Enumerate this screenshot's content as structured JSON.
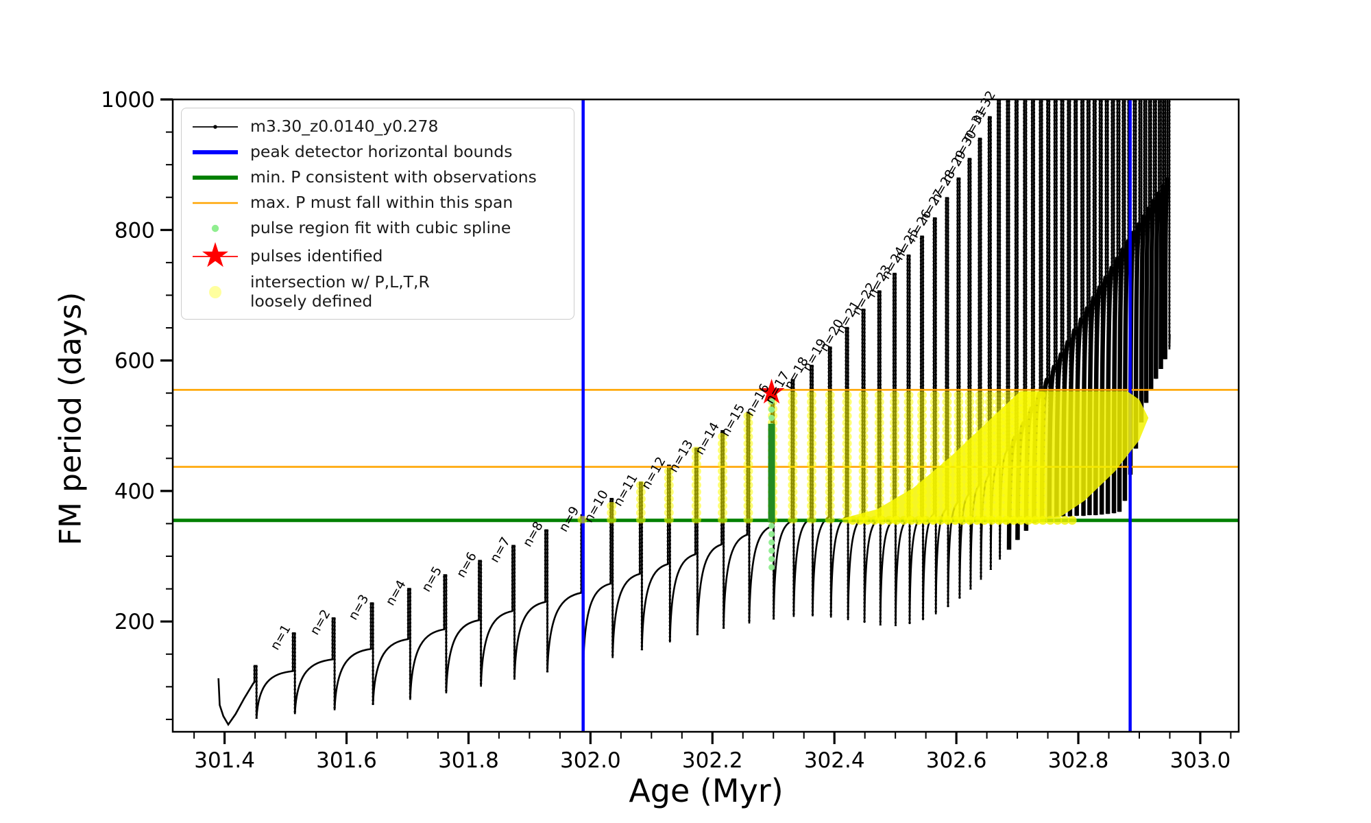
{
  "legend": {
    "entries": [
      {
        "label": "m3.30_z0.0140_y0.278",
        "marker": "black-line-dot"
      },
      {
        "label": "peak detector horizontal bounds",
        "marker": "blue-line"
      },
      {
        "label": "min. P consistent with observations",
        "marker": "green-line"
      },
      {
        "label": "max. P must fall within this span",
        "marker": "orange-line"
      },
      {
        "label": "pulse region fit with cubic spline",
        "marker": "lightgreen-dot"
      },
      {
        "label": "pulses identified",
        "marker": "red-star"
      },
      {
        "label": "intersection w/ P,L,T,R\nloosely defined",
        "marker": "yellow-dot"
      }
    ]
  },
  "chart_data": {
    "type": "line",
    "title": "",
    "xlabel": "Age (Myr)",
    "ylabel": "FM period (days)",
    "xlim": [
      301.315,
      303.063
    ],
    "ylim": [
      31,
      1000
    ],
    "xticks": [
      301.4,
      301.6,
      301.8,
      302.0,
      302.2,
      302.4,
      302.6,
      302.8,
      303.0
    ],
    "xtick_minor_step": 0.05,
    "yticks": [
      200,
      400,
      600,
      800,
      1000
    ],
    "ytick_minor_step": 50,
    "grid": false,
    "legend_position": "upper-left",
    "series_name": "m3.30_z0.0140_y0.278",
    "colors": {
      "series": "#000000",
      "peak_detector_bounds": "#0000ff",
      "min_P": "#008000",
      "max_P_span": "#ffa500",
      "spline_dots": "#90ee90",
      "spline_dense": "#228b22",
      "pulse_star": "#ff0000",
      "intersection": "#ffff00"
    },
    "vertical_lines": {
      "label": "peak detector horizontal bounds",
      "ages": [
        301.988,
        302.885
      ]
    },
    "horizontal_lines": {
      "min_P_consistent": 355,
      "max_P_span": [
        437,
        555
      ]
    },
    "star": {
      "age": 302.297,
      "period": 551,
      "label": "pulses identified"
    },
    "spline_column": {
      "age": 302.297,
      "light_range": [
        283,
        545
      ],
      "dense_range": [
        352,
        503
      ]
    },
    "prelude_points": [
      [
        301.39,
        113
      ],
      [
        301.392,
        72
      ],
      [
        301.398,
        55
      ],
      [
        301.406,
        42
      ],
      [
        301.418,
        58
      ],
      [
        301.432,
        82
      ],
      [
        301.447,
        105
      ]
    ],
    "pulses_columns": [
      "n",
      "age",
      "shoulder_P",
      "peak_P",
      "trough_P"
    ],
    "pulses": [
      [
        0,
        301.449,
        107,
        132,
        51
      ],
      [
        1,
        301.512,
        124,
        182,
        58
      ],
      [
        2,
        301.577,
        142,
        205,
        64
      ],
      [
        3,
        301.64,
        158,
        228,
        72
      ],
      [
        4,
        301.701,
        173,
        250,
        80
      ],
      [
        5,
        301.76,
        188,
        271,
        90
      ],
      [
        6,
        301.817,
        202,
        293,
        100
      ],
      [
        7,
        301.872,
        216,
        316,
        111
      ],
      [
        8,
        301.926,
        230,
        340,
        122
      ],
      [
        9,
        301.985,
        244,
        363,
        133
      ],
      [
        10,
        302.033,
        258,
        388,
        144
      ],
      [
        11,
        302.081,
        273,
        413,
        156
      ],
      [
        12,
        302.127,
        288,
        439,
        168
      ],
      [
        13,
        302.172,
        303,
        465,
        179
      ],
      [
        14,
        302.215,
        318,
        492,
        189
      ],
      [
        15,
        302.257,
        333,
        520,
        197
      ],
      [
        16,
        302.297,
        346,
        551,
        203
      ],
      [
        17,
        302.33,
        354,
        570,
        207
      ],
      [
        18,
        302.361,
        358,
        592,
        208
      ],
      [
        19,
        302.391,
        360,
        620,
        206
      ],
      [
        20,
        302.419,
        360,
        650,
        202
      ],
      [
        21,
        302.446,
        359,
        678,
        198
      ],
      [
        22,
        302.472,
        357,
        706,
        194
      ],
      [
        23,
        302.497,
        356,
        733,
        193
      ],
      [
        24,
        302.52,
        357,
        761,
        196
      ],
      [
        25,
        302.542,
        360,
        790,
        202
      ],
      [
        26,
        302.563,
        365,
        818,
        211
      ],
      [
        27,
        302.583,
        372,
        849,
        222
      ],
      [
        28,
        302.602,
        382,
        879,
        235
      ],
      [
        29,
        302.62,
        394,
        909,
        249
      ],
      [
        30,
        302.637,
        408,
        940,
        264
      ],
      [
        31,
        302.653,
        424,
        973,
        279
      ],
      [
        32,
        302.668,
        442,
        1000,
        295
      ],
      [
        33,
        302.683,
        462,
        1015,
        310
      ],
      [
        34,
        302.697,
        483,
        1015,
        325
      ],
      [
        35,
        302.711,
        505,
        1015,
        339
      ],
      [
        36,
        302.724,
        528,
        1015,
        351
      ],
      [
        37,
        302.737,
        551,
        1015,
        357
      ],
      [
        38,
        302.749,
        572,
        1015,
        359
      ],
      [
        39,
        302.761,
        592,
        1015,
        360
      ],
      [
        40,
        302.772,
        611,
        1015,
        361
      ],
      [
        41,
        302.783,
        630,
        1015,
        361
      ],
      [
        42,
        302.794,
        648,
        1015,
        362
      ],
      [
        43,
        302.805,
        665,
        1015,
        362
      ],
      [
        44,
        302.815,
        682,
        1015,
        363
      ],
      [
        45,
        302.825,
        698,
        1015,
        363
      ],
      [
        46,
        302.835,
        714,
        1015,
        364
      ],
      [
        47,
        302.845,
        729,
        1015,
        365
      ],
      [
        48,
        302.855,
        744,
        1015,
        366
      ],
      [
        49,
        302.864,
        758,
        1015,
        368
      ],
      [
        50,
        302.873,
        772,
        1015,
        385
      ],
      [
        51,
        302.882,
        785,
        1015,
        425
      ],
      [
        52,
        302.891,
        798,
        1015,
        465
      ],
      [
        53,
        302.9,
        811,
        1015,
        505
      ],
      [
        54,
        302.908,
        823,
        1015,
        535
      ],
      [
        55,
        302.916,
        835,
        1015,
        556
      ],
      [
        56,
        302.924,
        847,
        1015,
        572
      ],
      [
        57,
        302.932,
        858,
        1015,
        587
      ],
      [
        58,
        302.939,
        869,
        1015,
        602
      ],
      [
        59,
        302.946,
        880,
        1015,
        617
      ]
    ],
    "pulse_label_prefix": "n=",
    "labeled_pulse_range": [
      1,
      32
    ],
    "yellow_band": {
      "min": 355,
      "max": 555,
      "spike_range_n": [
        9,
        37
      ],
      "mass_polygon": [
        [
          302.405,
          356
        ],
        [
          302.47,
          372
        ],
        [
          302.53,
          405
        ],
        [
          302.59,
          452
        ],
        [
          302.65,
          505
        ],
        [
          302.705,
          553
        ],
        [
          302.88,
          553
        ],
        [
          302.9,
          540
        ],
        [
          302.915,
          512
        ],
        [
          302.9,
          478
        ],
        [
          302.86,
          430
        ],
        [
          302.81,
          385
        ],
        [
          302.77,
          360
        ],
        [
          302.73,
          356
        ],
        [
          302.41,
          356
        ]
      ],
      "green_line_bumps": {
        "age_start": 302.43,
        "age_end": 302.79,
        "step": 0.012
      }
    }
  }
}
